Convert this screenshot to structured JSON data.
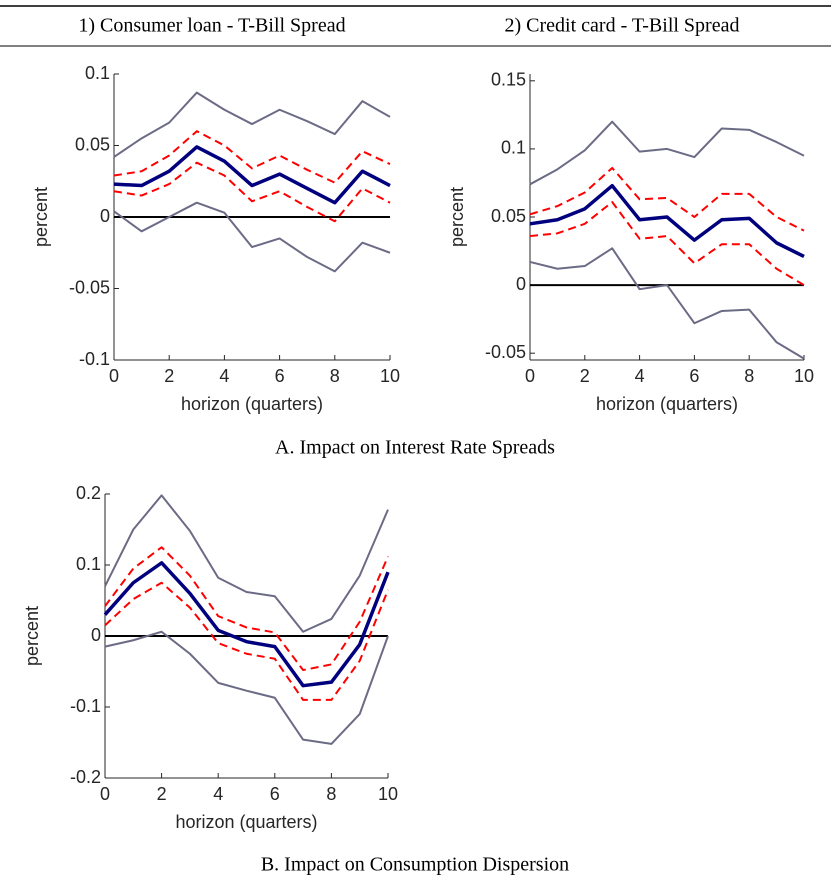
{
  "captions": [
    "A. Impact on Interest Rate Spreads",
    "B. Impact on Consumption Dispersion"
  ],
  "chart_data": [
    {
      "type": "line",
      "title": "1) Consumer loan - T-Bill Spread",
      "xlabel": "horizon (quarters)",
      "ylabel": "percent",
      "x": [
        0,
        1,
        2,
        3,
        4,
        5,
        6,
        7,
        8,
        9,
        10
      ],
      "xlim": [
        0,
        10
      ],
      "xticks": [
        0,
        2,
        4,
        6,
        8,
        10
      ],
      "ylim": [
        -0.1,
        0.1
      ],
      "yticks": [
        -0.1,
        -0.05,
        0,
        0.05,
        0.1
      ],
      "hline": 0,
      "series": [
        {
          "color": "#6b6b86",
          "dash": false,
          "width": 2,
          "values": [
            0.042,
            0.055,
            0.066,
            0.087,
            0.075,
            0.065,
            0.075,
            0.067,
            0.058,
            0.081,
            0.07
          ]
        },
        {
          "color": "#6b6b86",
          "dash": false,
          "width": 2,
          "values": [
            0.004,
            -0.01,
            0.0,
            0.01,
            0.003,
            -0.021,
            -0.015,
            -0.028,
            -0.038,
            -0.018,
            -0.025
          ]
        },
        {
          "color": "#ff0000",
          "dash": true,
          "width": 2,
          "values": [
            0.029,
            0.032,
            0.043,
            0.06,
            0.05,
            0.034,
            0.043,
            0.033,
            0.024,
            0.046,
            0.037
          ]
        },
        {
          "color": "#ff0000",
          "dash": true,
          "width": 2,
          "values": [
            0.018,
            0.015,
            0.023,
            0.038,
            0.029,
            0.011,
            0.018,
            0.007,
            -0.003,
            0.02,
            0.01
          ]
        },
        {
          "color": "#00007f",
          "dash": false,
          "width": 3.5,
          "values": [
            0.023,
            0.022,
            0.032,
            0.049,
            0.039,
            0.022,
            0.03,
            0.02,
            0.01,
            0.032,
            0.022
          ]
        }
      ]
    },
    {
      "type": "line",
      "title": "2) Credit card - T-Bill Spread",
      "xlabel": "horizon (quarters)",
      "ylabel": "percent",
      "x": [
        0,
        1,
        2,
        3,
        4,
        5,
        6,
        7,
        8,
        9,
        10
      ],
      "xlim": [
        0,
        10
      ],
      "xticks": [
        0,
        2,
        4,
        6,
        8,
        10
      ],
      "ylim": [
        -0.055,
        0.155
      ],
      "yticks": [
        -0.05,
        0,
        0.05,
        0.1,
        0.15
      ],
      "hline": 0,
      "series": [
        {
          "color": "#6b6b86",
          "dash": false,
          "width": 2,
          "values": [
            0.074,
            0.085,
            0.099,
            0.12,
            0.098,
            0.1,
            0.094,
            0.115,
            0.114,
            0.105,
            0.095
          ]
        },
        {
          "color": "#6b6b86",
          "dash": false,
          "width": 2,
          "values": [
            0.017,
            0.012,
            0.014,
            0.027,
            -0.003,
            0.0,
            -0.028,
            -0.019,
            -0.018,
            -0.042,
            -0.054
          ]
        },
        {
          "color": "#ff0000",
          "dash": true,
          "width": 2,
          "values": [
            0.052,
            0.058,
            0.068,
            0.086,
            0.063,
            0.064,
            0.05,
            0.067,
            0.067,
            0.05,
            0.04
          ]
        },
        {
          "color": "#ff0000",
          "dash": true,
          "width": 2,
          "values": [
            0.036,
            0.038,
            0.045,
            0.061,
            0.034,
            0.036,
            0.016,
            0.03,
            0.03,
            0.012,
            0.0
          ]
        },
        {
          "color": "#00007f",
          "dash": false,
          "width": 3.5,
          "values": [
            0.045,
            0.048,
            0.056,
            0.073,
            0.048,
            0.05,
            0.033,
            0.048,
            0.049,
            0.031,
            0.021
          ]
        }
      ]
    },
    {
      "type": "line",
      "xlabel": "horizon (quarters)",
      "ylabel": "percent",
      "x": [
        0,
        1,
        2,
        3,
        4,
        5,
        6,
        7,
        8,
        9,
        10
      ],
      "xlim": [
        0,
        10
      ],
      "xticks": [
        0,
        2,
        4,
        6,
        8,
        10
      ],
      "ylim": [
        -0.2,
        0.2
      ],
      "yticks": [
        -0.2,
        -0.1,
        0,
        0.1,
        0.2
      ],
      "hline": 0,
      "series": [
        {
          "color": "#6b6b86",
          "dash": false,
          "width": 2,
          "values": [
            0.07,
            0.15,
            0.198,
            0.148,
            0.082,
            0.062,
            0.056,
            0.006,
            0.024,
            0.085,
            0.178
          ]
        },
        {
          "color": "#6b6b86",
          "dash": false,
          "width": 2,
          "values": [
            -0.015,
            -0.006,
            0.006,
            -0.025,
            -0.066,
            -0.077,
            -0.087,
            -0.146,
            -0.152,
            -0.11,
            0.0
          ]
        },
        {
          "color": "#ff0000",
          "dash": true,
          "width": 2,
          "values": [
            0.042,
            0.095,
            0.125,
            0.085,
            0.028,
            0.012,
            0.005,
            -0.048,
            -0.04,
            0.02,
            0.112
          ]
        },
        {
          "color": "#ff0000",
          "dash": true,
          "width": 2,
          "values": [
            0.015,
            0.052,
            0.075,
            0.04,
            -0.01,
            -0.025,
            -0.032,
            -0.09,
            -0.09,
            -0.035,
            0.065
          ]
        },
        {
          "color": "#00007f",
          "dash": false,
          "width": 3.5,
          "values": [
            0.03,
            0.075,
            0.103,
            0.06,
            0.008,
            -0.008,
            -0.015,
            -0.07,
            -0.065,
            -0.012,
            0.09
          ]
        }
      ]
    }
  ]
}
